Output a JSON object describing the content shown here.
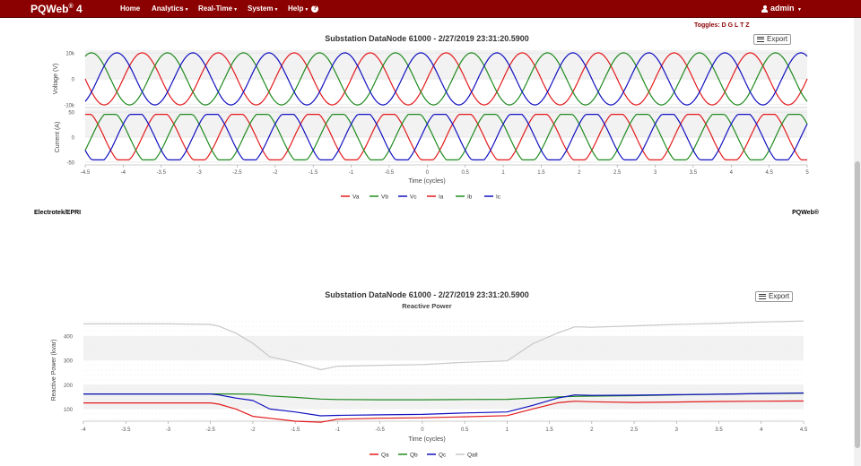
{
  "nav": {
    "brand": "PQWeb",
    "brand_sup": "®",
    "brand_version": " 4",
    "items": [
      "Home",
      "Analytics",
      "Real-Time",
      "System",
      "Help"
    ],
    "user": "admin"
  },
  "toggles_label": "Toggles: D G L T Z",
  "export_label": "Export",
  "footer": {
    "left": "Electrotek/EPRI",
    "right": "PQWeb®"
  },
  "colors": {
    "nav_bg": "#8b0000",
    "phase_a": "#e31a1c",
    "phase_b": "#1f8a1f",
    "phase_c": "#1010c0",
    "q_all": "#c8c8c8"
  },
  "chart_data": [
    {
      "type": "line",
      "title": "Substation DataNode 61000 - 2/27/2019 23:31:20.5900",
      "xlabel": "Time (cycles)",
      "xlim": [
        -4.5,
        5
      ],
      "xticks": [
        "-4.5",
        "-4",
        "-3.5",
        "-3",
        "-2.5",
        "-2",
        "-1.5",
        "-1",
        "-0.5",
        "0",
        "0.5",
        "1",
        "1.5",
        "2",
        "2.5",
        "3",
        "3.5",
        "4",
        "4.5",
        "5"
      ],
      "legend": [
        "Va",
        "Vb",
        "Vc",
        "Ia",
        "Ib",
        "Ic"
      ],
      "legend_position": "bottom",
      "panels": [
        {
          "ylabel": "Voltage (V)",
          "yticks": [
            "10k",
            "0",
            "-10k"
          ],
          "ylim": [
            -11000,
            11000
          ],
          "amplitude": 10000,
          "series": [
            {
              "name": "Va",
              "phase_deg": 0
            },
            {
              "name": "Vb",
              "phase_deg": -120
            },
            {
              "name": "Vc",
              "phase_deg": 120
            }
          ]
        },
        {
          "ylabel": "Current (A)",
          "yticks": [
            "50",
            "0",
            "-50"
          ],
          "ylim": [
            -55,
            55
          ],
          "amplitude": 45,
          "series": [
            {
              "name": "Ia",
              "phase_deg": -90
            },
            {
              "name": "Ib",
              "phase_deg": 150
            },
            {
              "name": "Ic",
              "phase_deg": 30
            }
          ]
        }
      ]
    },
    {
      "type": "line",
      "title": "Substation DataNode 61000 - 2/27/2019 23:31:20.5900",
      "subtitle": "Reactive Power",
      "xlabel": "Time (cycles)",
      "ylabel": "Reactive Power (kvar)",
      "xlim": [
        -4,
        4.5
      ],
      "ylim": [
        50,
        470
      ],
      "xticks": [
        "-4",
        "-3.5",
        "-3",
        "-2.5",
        "-2",
        "-1.5",
        "-1",
        "-0.5",
        "0",
        "0.5",
        "1",
        "1.5",
        "2",
        "2.5",
        "3",
        "3.5",
        "4",
        "4.5"
      ],
      "yticks": [
        "100",
        "200",
        "300",
        "400"
      ],
      "legend_position": "bottom",
      "x": [
        -4,
        -3.5,
        -3,
        -2.5,
        -2.4,
        -2.2,
        -2,
        -1.8,
        -1.5,
        -1.2,
        -1,
        -0.5,
        0,
        0.5,
        1,
        1.3,
        1.6,
        1.8,
        2,
        2.5,
        3,
        3.5,
        4,
        4.5
      ],
      "series": [
        {
          "name": "Qa",
          "values": [
            125,
            125,
            125,
            125,
            120,
            100,
            70,
            62,
            50,
            46,
            58,
            62,
            64,
            68,
            73,
            100,
            126,
            132,
            130,
            127,
            129,
            131,
            132,
            133
          ]
        },
        {
          "name": "Qb",
          "values": [
            162,
            162,
            162,
            162,
            162,
            162,
            161,
            154,
            148,
            141,
            139,
            138,
            138,
            139,
            140,
            145,
            150,
            152,
            153,
            155,
            158,
            161,
            163,
            165
          ]
        },
        {
          "name": "Qc",
          "values": [
            162,
            162,
            162,
            162,
            158,
            145,
            135,
            100,
            88,
            72,
            74,
            76,
            78,
            84,
            88,
            115,
            145,
            158,
            156,
            157,
            159,
            161,
            164,
            166
          ]
        },
        {
          "name": "Qall",
          "values": [
            450,
            450,
            450,
            448,
            440,
            412,
            370,
            315,
            292,
            262,
            276,
            280,
            283,
            292,
            298,
            368,
            413,
            438,
            436,
            442,
            448,
            452,
            458,
            462
          ]
        }
      ]
    }
  ]
}
